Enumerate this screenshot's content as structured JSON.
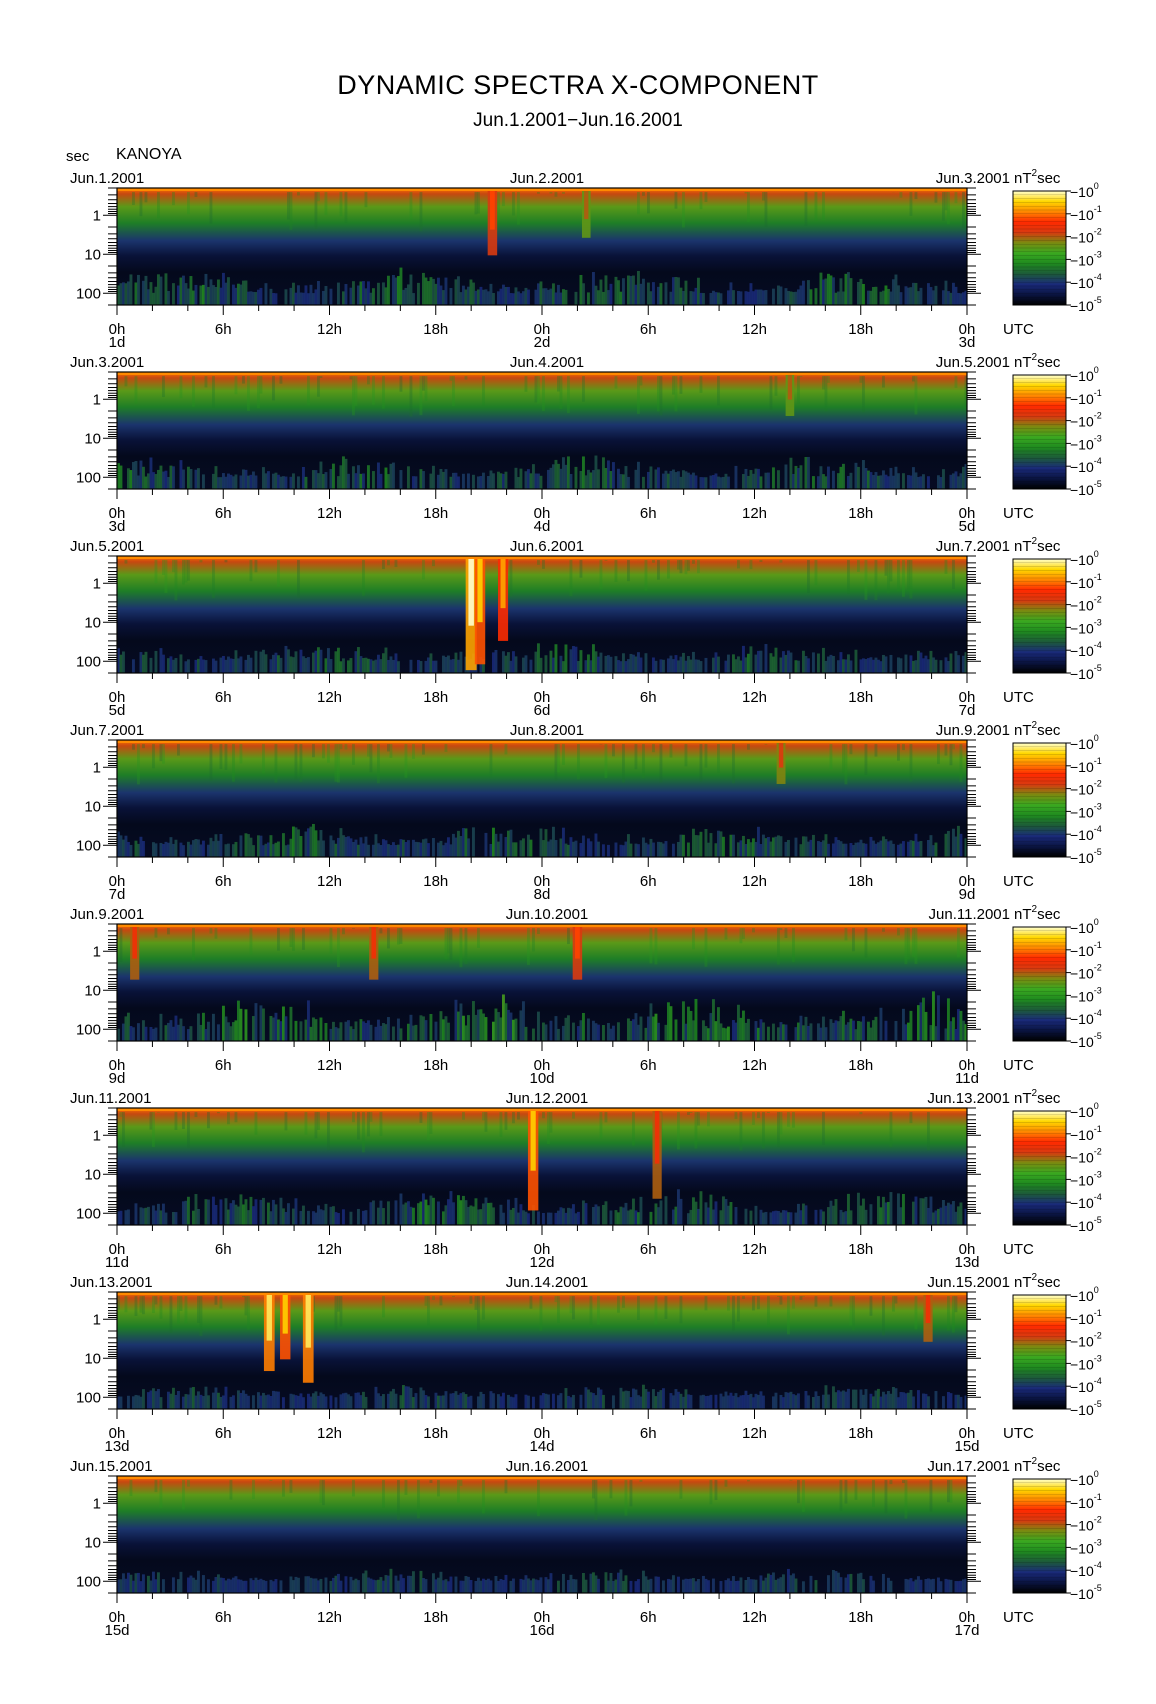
{
  "title": "DYNAMIC SPECTRA X-COMPONENT",
  "subtitle": "Jun.1.2001−Jun.16.2001",
  "station": "KANOYA",
  "y_unit": "sec",
  "colorbar_unit": "nT",
  "colorbar_unit_power": "2",
  "colorbar_unit_suffix": "sec",
  "utc_label": "UTC",
  "chart_data": {
    "type": "heatmap",
    "description_type": "dynamic spectra (spectrogram)",
    "x_tick_labels": [
      "0h",
      "6h",
      "12h",
      "18h",
      "0h",
      "6h",
      "12h",
      "18h",
      "0h"
    ],
    "y_tick_labels": [
      "1",
      "10",
      "100"
    ],
    "y_ticks_value": [
      1,
      10,
      100
    ],
    "y_scale": "log",
    "y_range_sec": [
      0.2,
      200
    ],
    "y_direction": "increasing-downward",
    "colorbar": {
      "scale": "log",
      "range": [
        1e-05,
        1
      ],
      "tick_exponents": [
        "0",
        "-1",
        "-2",
        "-3",
        "-4",
        "-5"
      ],
      "tick_base": "10",
      "colors": [
        "#000000",
        "#0a1440",
        "#1a2a7a",
        "#1d5a3a",
        "#1f8a1f",
        "#3aa820",
        "#7a8a10",
        "#d83a10",
        "#ff2a00",
        "#ff8800",
        "#ffd800",
        "#ffffd0"
      ]
    },
    "panels": [
      {
        "start_date": "Jun.1.2001",
        "mid_date": "Jun.2.2001",
        "end_date": "Jun.3.2001",
        "day_labels": [
          "1d",
          "2d",
          "3d"
        ],
        "events": [
          {
            "t_h": 21.2,
            "level": 0.75,
            "reach": 0.55
          },
          {
            "t_h": 26.5,
            "level": 0.6,
            "reach": 0.4
          }
        ],
        "activity": 0.55
      },
      {
        "start_date": "Jun.3.2001",
        "mid_date": "Jun.4.2001",
        "end_date": "Jun.5.2001",
        "day_labels": [
          "3d",
          "4d",
          "5d"
        ],
        "events": [
          {
            "t_h": 38.0,
            "level": 0.6,
            "reach": 0.35
          }
        ],
        "activity": 0.5
      },
      {
        "start_date": "Jun.5.2001",
        "mid_date": "Jun.6.2001",
        "end_date": "Jun.7.2001",
        "day_labels": [
          "5d",
          "6d",
          "7d"
        ],
        "events": [
          {
            "t_h": 20.0,
            "level": 1.0,
            "reach": 0.95
          },
          {
            "t_h": 20.5,
            "level": 0.9,
            "reach": 0.9
          },
          {
            "t_h": 21.8,
            "level": 0.85,
            "reach": 0.7
          }
        ],
        "activity": 0.45
      },
      {
        "start_date": "Jun.7.2001",
        "mid_date": "Jun.8.2001",
        "end_date": "Jun.9.2001",
        "day_labels": [
          "7d",
          "8d",
          "9d"
        ],
        "events": [
          {
            "t_h": 37.5,
            "level": 0.65,
            "reach": 0.35
          }
        ],
        "activity": 0.5
      },
      {
        "start_date": "Jun.9.2001",
        "mid_date": "Jun.10.2001",
        "end_date": "Jun.11.2001",
        "day_labels": [
          "9d",
          "10d",
          "11d"
        ],
        "events": [
          {
            "t_h": 1.0,
            "level": 0.7,
            "reach": 0.45
          },
          {
            "t_h": 14.5,
            "level": 0.7,
            "reach": 0.45
          },
          {
            "t_h": 26.0,
            "level": 0.75,
            "reach": 0.45
          }
        ],
        "activity": 0.8
      },
      {
        "start_date": "Jun.11.2001",
        "mid_date": "Jun.12.2001",
        "end_date": "Jun.13.2001",
        "day_labels": [
          "11d",
          "12d",
          "13d"
        ],
        "events": [
          {
            "t_h": 23.5,
            "level": 0.9,
            "reach": 0.85
          },
          {
            "t_h": 30.5,
            "level": 0.7,
            "reach": 0.75
          }
        ],
        "activity": 0.55
      },
      {
        "start_date": "Jun.13.2001",
        "mid_date": "Jun.14.2001",
        "end_date": "Jun.15.2001",
        "day_labels": [
          "13d",
          "14d",
          "15d"
        ],
        "events": [
          {
            "t_h": 8.6,
            "level": 0.95,
            "reach": 0.65
          },
          {
            "t_h": 9.5,
            "level": 0.9,
            "reach": 0.55
          },
          {
            "t_h": 10.8,
            "level": 0.95,
            "reach": 0.75
          },
          {
            "t_h": 45.8,
            "level": 0.7,
            "reach": 0.4
          }
        ],
        "activity": 0.3
      },
      {
        "start_date": "Jun.15.2001",
        "mid_date": "Jun.16.2001",
        "end_date": "Jun.17.2001",
        "day_labels": [
          "15d",
          "16d",
          "17d"
        ],
        "events": [],
        "activity": 0.3
      }
    ]
  }
}
